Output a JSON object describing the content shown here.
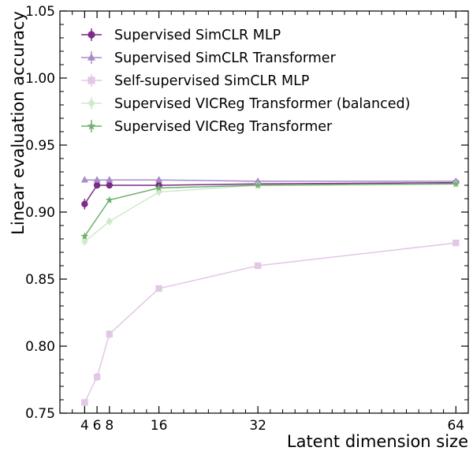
{
  "chart_data": {
    "type": "line",
    "xlabel": "Latent dimension size",
    "ylabel": "Linear evaluation accuracy",
    "xlim": [
      0,
      66
    ],
    "ylim": [
      0.75,
      1.05
    ],
    "xticks": [
      4,
      6,
      8,
      16,
      32,
      64
    ],
    "yticks": [
      0.75,
      0.8,
      0.85,
      0.9,
      0.95,
      1.0,
      1.05
    ],
    "ytick_labels": [
      "0.75",
      "0.80",
      "0.85",
      "0.90",
      "0.95",
      "1.00",
      "1.05"
    ],
    "grid": false,
    "legend_position": "top-left",
    "series": [
      {
        "name": "Supervised SimCLR MLP",
        "color": "#7b2c86",
        "marker": "circle",
        "x": [
          4,
          6,
          8,
          16,
          32,
          64
        ],
        "y": [
          0.906,
          0.92,
          0.92,
          0.92,
          0.921,
          0.922
        ],
        "yerr": [
          0.004,
          0.002,
          0.001,
          0.001,
          0.001,
          0.001
        ]
      },
      {
        "name": "Supervised SimCLR Transformer",
        "color": "#a98bc7",
        "marker": "triangle",
        "x": [
          4,
          6,
          8,
          16,
          32,
          64
        ],
        "y": [
          0.924,
          0.924,
          0.924,
          0.924,
          0.923,
          0.923
        ],
        "yerr": [
          0.001,
          0.001,
          0.001,
          0.001,
          0.001,
          0.001
        ]
      },
      {
        "name": "Self-supervised SimCLR MLP",
        "color": "#e3c7e6",
        "marker": "square",
        "x": [
          4,
          6,
          8,
          16,
          32,
          64
        ],
        "y": [
          0.758,
          0.777,
          0.809,
          0.843,
          0.86,
          0.877
        ],
        "yerr": [
          0.002,
          0.003,
          0.003,
          0.001,
          0.001,
          0.001
        ]
      },
      {
        "name": "Supervised VICReg Transformer (balanced)",
        "color": "#cfeac9",
        "marker": "diamond",
        "x": [
          4,
          6,
          8,
          16,
          32,
          64
        ],
        "y": [
          0.878,
          null,
          0.893,
          0.915,
          0.92,
          0.921
        ],
        "yerr": [
          0.002,
          0,
          0.003,
          0.002,
          0.001,
          0.001
        ]
      },
      {
        "name": "Supervised VICReg Transformer",
        "color": "#6fb16c",
        "marker": "star",
        "x": [
          4,
          6,
          8,
          16,
          32,
          64
        ],
        "y": [
          0.882,
          null,
          0.909,
          0.918,
          0.92,
          0.921
        ],
        "yerr": [
          0.002,
          0,
          0.002,
          0.001,
          0.001,
          0.001
        ]
      }
    ]
  }
}
